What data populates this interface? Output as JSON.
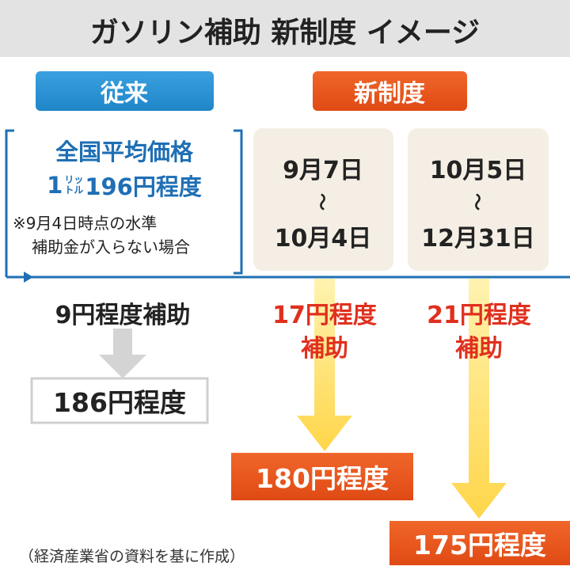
{
  "header": {
    "title": "ガソリン補助 新制度 イメージ"
  },
  "conventional": {
    "label": "従来",
    "baseline": {
      "line1": "全国平均価格",
      "line2_lead": "1",
      "line2_unit_top": "リッ",
      "line2_unit_bottom": "トル",
      "line2_rest": "196円程度",
      "note1": "※9月4日時点の水準",
      "note2": "補助金が入らない場合"
    },
    "subsidy": "9円程度補助",
    "result": "186円程度"
  },
  "new_system": {
    "label": "新制度",
    "periods": [
      {
        "start": "9月7日",
        "range_mark": "～",
        "end": "10月4日",
        "subsidy_line1": "17円程度",
        "subsidy_line2": "補助",
        "result": "180円程度"
      },
      {
        "start": "10月5日",
        "range_mark": "～",
        "end": "12月31日",
        "subsidy_line1": "21円程度",
        "subsidy_line2": "補助",
        "result": "175円程度"
      }
    ]
  },
  "source": "（経済産業省の資料を基に作成）"
}
